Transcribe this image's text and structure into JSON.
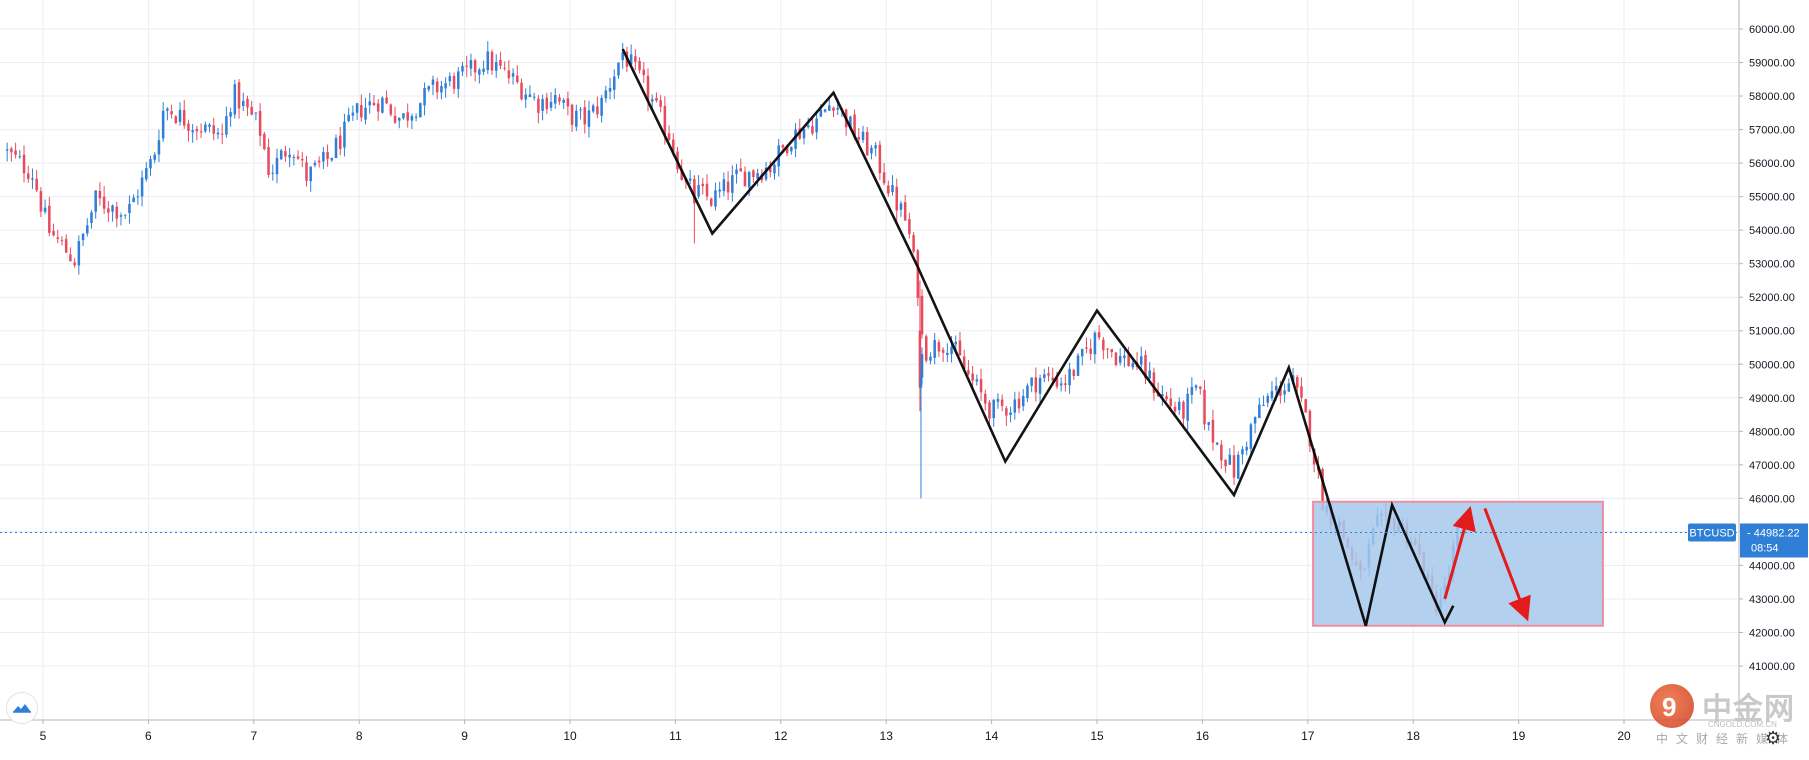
{
  "chart_data": {
    "type": "candlestick",
    "symbol": "BTCUSD",
    "last_price": "44982.22",
    "countdown": "08:54",
    "y_axis": {
      "ylim": [
        40000,
        60600
      ],
      "ticks": [
        60000,
        59000,
        58000,
        57000,
        56000,
        55000,
        54000,
        53000,
        52000,
        51000,
        50000,
        49000,
        48000,
        47000,
        46000,
        45000,
        44000,
        43000,
        42000,
        41000
      ],
      "tick_labels": [
        "60000.00",
        "59000.00",
        "58000.00",
        "57000.00",
        "56000.00",
        "55000.00",
        "54000.00",
        "53000.00",
        "52000.00",
        "51000.00",
        "50000.00",
        "49000.00",
        "48000.00",
        "47000.00",
        "46000.00",
        "45000.00",
        "44000.00",
        "43000.00",
        "42000.00",
        "41000.00"
      ]
    },
    "x_axis": {
      "xlim": [
        4.62,
        20.0
      ],
      "ticks": [
        5,
        6,
        7,
        8,
        9,
        10,
        11,
        12,
        13,
        14,
        15,
        16,
        17,
        18,
        19,
        20
      ],
      "tick_labels": [
        "5",
        "6",
        "7",
        "8",
        "9",
        "10",
        "11",
        "12",
        "13",
        "14",
        "15",
        "16",
        "17",
        "18",
        "19",
        "20"
      ]
    },
    "grid": true,
    "colors": {
      "up": "#2f7fd6",
      "down": "#e74c5e",
      "last_line": "#2f7fd6",
      "trend": "#000000",
      "arrow": "#e21b1b",
      "box_fill": "#a7c8ec",
      "box_border": "#f08ea0"
    },
    "anchors": [
      [
        4.62,
        56400
      ],
      [
        4.9,
        55700
      ],
      [
        5.05,
        54000
      ],
      [
        5.3,
        53100
      ],
      [
        5.5,
        54900
      ],
      [
        5.8,
        54500
      ],
      [
        6.05,
        56200
      ],
      [
        6.15,
        57700
      ],
      [
        6.4,
        57200
      ],
      [
        6.7,
        56800
      ],
      [
        6.8,
        58100
      ],
      [
        7.05,
        57100
      ],
      [
        7.15,
        55700
      ],
      [
        7.35,
        56600
      ],
      [
        7.5,
        55600
      ],
      [
        7.7,
        56100
      ],
      [
        8.0,
        57600
      ],
      [
        8.2,
        57900
      ],
      [
        8.4,
        57300
      ],
      [
        8.7,
        58200
      ],
      [
        9.0,
        58600
      ],
      [
        9.2,
        59100
      ],
      [
        9.45,
        58500
      ],
      [
        9.7,
        57800
      ],
      [
        9.85,
        58000
      ],
      [
        10.0,
        57400
      ],
      [
        10.15,
        57300
      ],
      [
        10.3,
        57800
      ],
      [
        10.5,
        59300
      ],
      [
        10.7,
        58300
      ],
      [
        10.95,
        56800
      ],
      [
        11.1,
        55300
      ],
      [
        11.35,
        54900
      ],
      [
        11.6,
        55600
      ],
      [
        11.9,
        55900
      ],
      [
        12.1,
        56800
      ],
      [
        12.35,
        57300
      ],
      [
        12.5,
        57900
      ],
      [
        12.7,
        56900
      ],
      [
        12.9,
        56200
      ],
      [
        13.05,
        55100
      ],
      [
        13.2,
        54200
      ],
      [
        13.3,
        52300
      ],
      [
        13.35,
        50400
      ],
      [
        13.5,
        50600
      ],
      [
        13.6,
        50700
      ],
      [
        13.75,
        49800
      ],
      [
        14.0,
        48600
      ],
      [
        14.2,
        48800
      ],
      [
        14.45,
        49600
      ],
      [
        14.7,
        49500
      ],
      [
        14.85,
        50100
      ],
      [
        15.0,
        50900
      ],
      [
        15.2,
        50200
      ],
      [
        15.4,
        50000
      ],
      [
        15.6,
        49100
      ],
      [
        15.8,
        48500
      ],
      [
        15.95,
        49300
      ],
      [
        16.05,
        48100
      ],
      [
        16.3,
        46800
      ],
      [
        16.5,
        48400
      ],
      [
        16.65,
        49100
      ],
      [
        16.85,
        49500
      ],
      [
        17.0,
        48200
      ],
      [
        17.15,
        45800
      ],
      [
        17.3,
        45200
      ],
      [
        17.5,
        43600
      ],
      [
        17.65,
        45200
      ],
      [
        17.85,
        45300
      ],
      [
        18.0,
        44700
      ],
      [
        18.1,
        43900
      ],
      [
        18.2,
        42800
      ],
      [
        18.3,
        43200
      ],
      [
        18.42,
        44980
      ]
    ],
    "special_candles": [
      {
        "x": 11.18,
        "open": 55300,
        "close": 54800,
        "high": 55600,
        "low": 53600
      },
      {
        "x": 13.32,
        "open": 51000,
        "close": 49300,
        "high": 52500,
        "low": 48600
      },
      {
        "x": 13.33,
        "open": 49300,
        "close": 49600,
        "high": 49900,
        "low": 46000
      },
      {
        "x": 13.34,
        "open": 49600,
        "close": 50300,
        "high": 50500,
        "low": 49400
      }
    ],
    "annotations": {
      "trendlines": [
        [
          [
            10.5,
            59400
          ],
          [
            11.35,
            53900
          ],
          [
            12.5,
            58100
          ],
          [
            13.3,
            52900
          ],
          [
            14.13,
            47100
          ],
          [
            15.0,
            51600
          ],
          [
            16.3,
            46100
          ],
          [
            16.82,
            49900
          ],
          [
            17.55,
            42200
          ],
          [
            17.8,
            45800
          ],
          [
            18.3,
            42300
          ],
          [
            18.38,
            42800
          ]
        ]
      ],
      "rectangle": {
        "x0": 17.05,
        "x1": 19.8,
        "y0": 42200,
        "y1": 45900
      },
      "arrows": [
        {
          "from": [
            18.3,
            43000
          ],
          "to": [
            18.53,
            45600
          ]
        },
        {
          "from": [
            18.68,
            45700
          ],
          "to": [
            19.07,
            42500
          ]
        }
      ]
    }
  },
  "price_badge": {
    "symbol": "BTCUSD",
    "price": "44982.22",
    "countdown": "08:54"
  },
  "watermark": {
    "logo_char": "9",
    "main": "中金网",
    "sub": "CNGOLD.COM.CN",
    "tagline": "中文财经新媒体"
  },
  "icons": {
    "tradingview_logo": "tradingview-logo-icon",
    "settings": "gear-icon"
  }
}
